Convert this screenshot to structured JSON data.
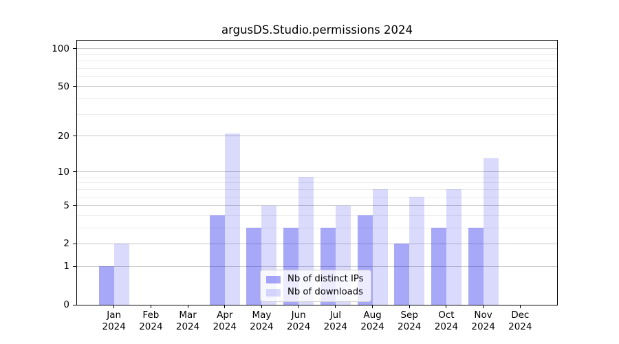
{
  "chart_data": {
    "type": "bar",
    "title": "argusDS.Studio.permissions 2024",
    "xlabel": "",
    "ylabel": "",
    "yscale": "log1p",
    "ylim": [
      0,
      116
    ],
    "grid": "horizontal",
    "legend_position": "lower center",
    "categories": [
      "Jan 2024",
      "Feb 2024",
      "Mar 2024",
      "Apr 2024",
      "May 2024",
      "Jun 2024",
      "Jul 2024",
      "Aug 2024",
      "Sep 2024",
      "Oct 2024",
      "Nov 2024",
      "Dec 2024"
    ],
    "y_major_ticks": [
      0,
      1,
      2,
      5,
      10,
      20,
      50,
      100
    ],
    "y_minor_ticks": [
      3,
      4,
      6,
      7,
      8,
      9,
      30,
      40,
      60,
      70,
      80,
      90
    ],
    "series": [
      {
        "name": "Nb of distinct IPs",
        "color": "#a8a8f9",
        "fill": "rgba(0, 0, 238, 0.34)",
        "values": [
          1,
          0,
          0,
          4,
          3,
          3,
          3,
          4,
          2,
          3,
          3,
          0
        ]
      },
      {
        "name": "Nb of downloads",
        "color": "#dadaf9",
        "fill": "rgba(0, 0, 238, 0.145)",
        "values": [
          2,
          0,
          0,
          21,
          5,
          9,
          5,
          7,
          6,
          7,
          13,
          0
        ]
      }
    ],
    "colors": {
      "major_gridline": "#c9c9c9",
      "minor_gridline": "#ececec",
      "axis": "#000000",
      "legend_border": "#cccccc"
    }
  }
}
